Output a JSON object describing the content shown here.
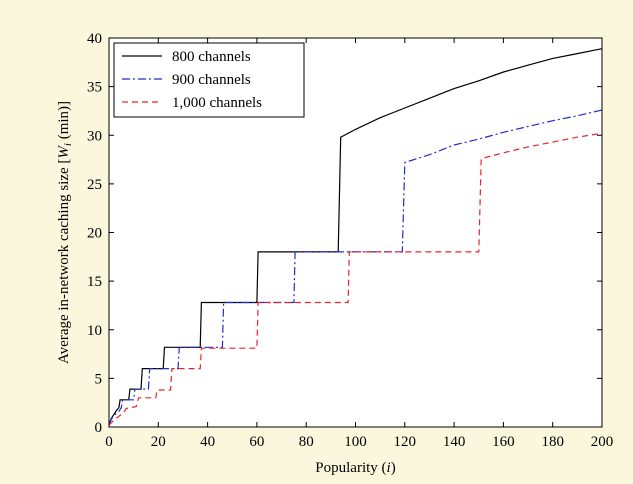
{
  "chart_data": {
    "type": "line",
    "title": "",
    "xlabel": "Popularity (i)",
    "ylabel": "Average in-network caching size [W_i (min)]",
    "xlim": [
      0,
      200
    ],
    "ylim": [
      0,
      40
    ],
    "xticks": [
      0,
      20,
      40,
      60,
      80,
      100,
      120,
      140,
      160,
      180,
      200
    ],
    "yticks": [
      0,
      5,
      10,
      15,
      20,
      25,
      30,
      35,
      40
    ],
    "grid": false,
    "legend_position": "top-left",
    "series": [
      {
        "name": "800 channels",
        "color": "#000000",
        "dash": "solid",
        "points": [
          [
            0,
            0.3
          ],
          [
            1,
            0.9
          ],
          [
            2,
            1.3
          ],
          [
            3,
            1.7
          ],
          [
            4,
            2.0
          ],
          [
            4.5,
            2.8
          ],
          [
            8,
            2.8
          ],
          [
            8.5,
            3.9
          ],
          [
            13,
            3.9
          ],
          [
            13.5,
            6.0
          ],
          [
            22,
            6.0
          ],
          [
            22.5,
            8.2
          ],
          [
            37,
            8.2
          ],
          [
            37.5,
            12.8
          ],
          [
            60,
            12.8
          ],
          [
            60.5,
            18.0
          ],
          [
            93,
            18.0
          ],
          [
            94,
            29.8
          ],
          [
            100,
            30.6
          ],
          [
            110,
            31.8
          ],
          [
            120,
            32.8
          ],
          [
            130,
            33.8
          ],
          [
            140,
            34.8
          ],
          [
            150,
            35.6
          ],
          [
            160,
            36.5
          ],
          [
            170,
            37.2
          ],
          [
            180,
            37.9
          ],
          [
            190,
            38.4
          ],
          [
            200,
            38.9
          ]
        ]
      },
      {
        "name": "900 channels",
        "color": "#1f2ec9",
        "dash": "dashdot",
        "points": [
          [
            0,
            0.3
          ],
          [
            1,
            0.8
          ],
          [
            2,
            1.2
          ],
          [
            4,
            1.6
          ],
          [
            5,
            2.0
          ],
          [
            5.5,
            2.8
          ],
          [
            10,
            2.8
          ],
          [
            10.5,
            3.9
          ],
          [
            16,
            3.9
          ],
          [
            16.5,
            6.0
          ],
          [
            28,
            6.0
          ],
          [
            28.5,
            8.2
          ],
          [
            46,
            8.2
          ],
          [
            46.5,
            12.8
          ],
          [
            75,
            12.8
          ],
          [
            75.5,
            18.0
          ],
          [
            119,
            18.0
          ],
          [
            120,
            27.2
          ],
          [
            130,
            28.0
          ],
          [
            140,
            29.0
          ],
          [
            150,
            29.6
          ],
          [
            160,
            30.3
          ],
          [
            170,
            30.9
          ],
          [
            180,
            31.5
          ],
          [
            190,
            32.0
          ],
          [
            200,
            32.6
          ]
        ]
      },
      {
        "name": "1,000 channels",
        "color": "#e8252b",
        "dash": "dashed",
        "points": [
          [
            0,
            0.2
          ],
          [
            2,
            0.7
          ],
          [
            4,
            1.1
          ],
          [
            6,
            1.5
          ],
          [
            7,
            1.9
          ],
          [
            11,
            2.1
          ],
          [
            12,
            3.0
          ],
          [
            19,
            3.0
          ],
          [
            19.5,
            3.8
          ],
          [
            25,
            3.8
          ],
          [
            25.5,
            6.0
          ],
          [
            37,
            6.0
          ],
          [
            37.5,
            8.1
          ],
          [
            60,
            8.1
          ],
          [
            60.5,
            12.8
          ],
          [
            97,
            12.8
          ],
          [
            97.5,
            18.0
          ],
          [
            150,
            18.0
          ],
          [
            151,
            27.6
          ],
          [
            160,
            28.2
          ],
          [
            170,
            28.8
          ],
          [
            180,
            29.3
          ],
          [
            190,
            29.8
          ],
          [
            200,
            30.2
          ]
        ]
      }
    ]
  }
}
